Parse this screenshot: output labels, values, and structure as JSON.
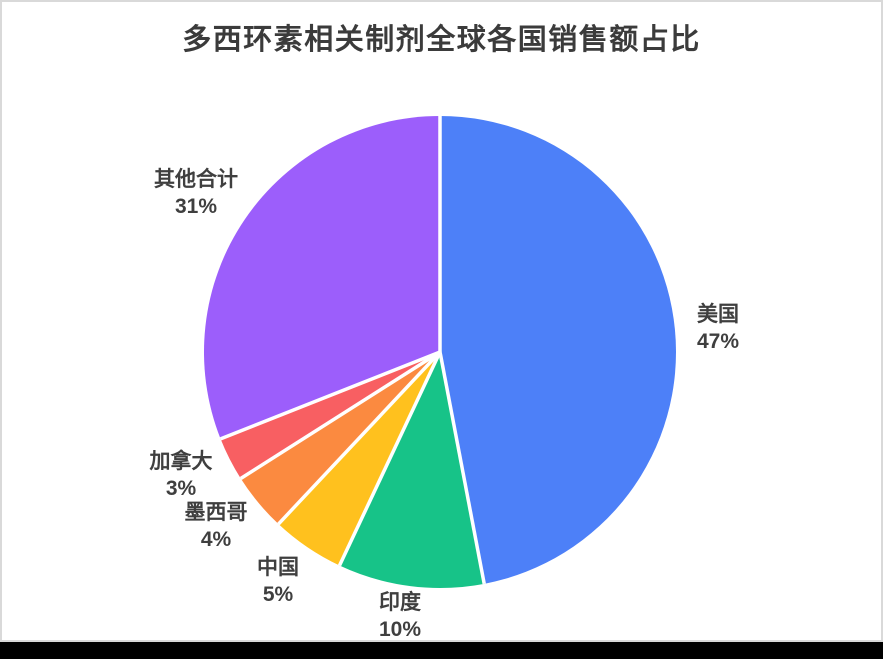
{
  "chart_data": {
    "type": "pie",
    "title": "多西环素相关制剂全球各国销售额占比",
    "legend_position": "none",
    "label_style": "outside, two lines (name above percent)",
    "start_angle": "12 o'clock, clockwise",
    "total": 100,
    "slices": [
      {
        "id": "usa",
        "label": "美国",
        "value": 47,
        "value_text": "47%",
        "color": "#4D80F8"
      },
      {
        "id": "india",
        "label": "印度",
        "value": 10,
        "value_text": "10%",
        "color": "#17C388"
      },
      {
        "id": "china",
        "label": "中国",
        "value": 5,
        "value_text": "5%",
        "color": "#FFC11E"
      },
      {
        "id": "mexico",
        "label": "墨西哥",
        "value": 4,
        "value_text": "4%",
        "color": "#FB8A40"
      },
      {
        "id": "canada",
        "label": "加拿大",
        "value": 3,
        "value_text": "3%",
        "color": "#F85F62"
      },
      {
        "id": "others",
        "label": "其他合计",
        "value": 31,
        "value_text": "31%",
        "color": "#9C5EFB"
      }
    ]
  },
  "colors": {
    "background": "#FFFFFF",
    "canvas_border": "#D9D9D9",
    "bottom_bar": "#000000",
    "title_color": "#3B3B3B",
    "label_color": "#3F3F3F",
    "slice_separator": "#FFFFFF"
  }
}
